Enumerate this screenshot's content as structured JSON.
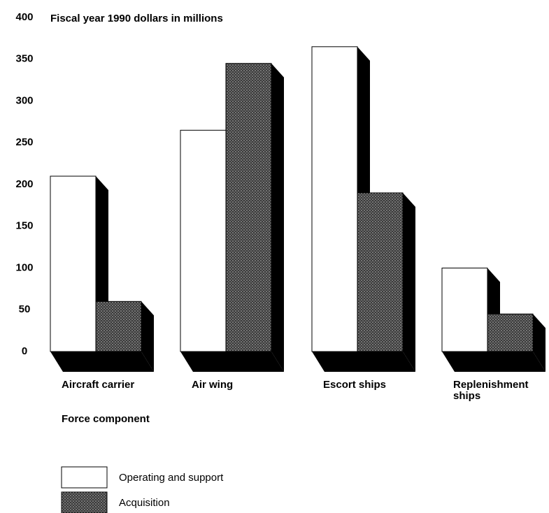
{
  "chart_data": {
    "type": "bar",
    "ylabel": "Fiscal year 1990 dollars in millions",
    "xlabel": "Force component",
    "categories": [
      "Aircraft carrier",
      "Air wing",
      "Escort ships",
      "Replenishment ships"
    ],
    "series": [
      {
        "name": "Operating and support",
        "color": "#ffffff",
        "values": [
          210,
          265,
          365,
          100
        ]
      },
      {
        "name": "Acquisition",
        "color": "#3a3a3a",
        "values": [
          60,
          345,
          190,
          45
        ]
      }
    ],
    "ylim": [
      0,
      400
    ],
    "yticks": [
      0,
      50,
      100,
      150,
      200,
      250,
      300,
      350,
      400
    ],
    "grid": false,
    "legend": "bottom-left"
  }
}
